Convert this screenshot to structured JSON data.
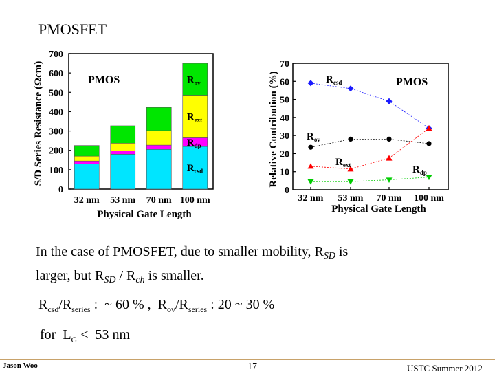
{
  "slide": {
    "title": "PMOSFET",
    "body_line1_pre": "In the case of PMOSFET, due to smaller mobility, R",
    "body_line1_sub": "SD",
    "body_line1_post": " is",
    "body_line2_pre": "larger, but R",
    "body_line2_sub1": "SD",
    "body_line2_mid": " / R",
    "body_line2_sub2": "ch",
    "body_line2_post": " is smaller.",
    "ratio": {
      "r1": "R",
      "r1_sub": "csd",
      "slash1": "/R",
      "series1_sub": "series",
      "v1": " :  ~ 60 % ,  ",
      "r2": "R",
      "r2_sub": "ov",
      "slash2": "/R",
      "series2_sub": "series",
      "v2": " : 20 ~ 30 %"
    },
    "range": {
      "pre": "for  L",
      "sub": "G",
      "post": " <  53 nm"
    },
    "footer": {
      "author": "Jason Woo",
      "page": "17",
      "venue": "USTC  Summer 2012"
    }
  },
  "chart_data": [
    {
      "type": "bar",
      "stacked": true,
      "annotation": "PMOS",
      "xlabel": "Physical Gate Length",
      "ylabel": "S/D Series Resistance (Ωcm)",
      "categories": [
        "32 nm",
        "53 nm",
        "70 nm",
        "100 nm"
      ],
      "ylim": [
        0,
        700
      ],
      "yticks": [
        0,
        100,
        200,
        300,
        400,
        500,
        600,
        700
      ],
      "series": [
        {
          "name": "Rcsd",
          "name_base": "R",
          "name_sub": "csd",
          "color": "#00e5ff",
          "values": [
            130,
            180,
            205,
            220
          ]
        },
        {
          "name": "Rdp",
          "name_base": "R",
          "name_sub": "dp",
          "color": "#ff00ff",
          "values": [
            15,
            17,
            22,
            45
          ]
        },
        {
          "name": "Rext",
          "name_base": "R",
          "name_sub": "ext",
          "color": "#ffff00",
          "values": [
            25,
            40,
            75,
            220
          ]
        },
        {
          "name": "Rov",
          "name_base": "R",
          "name_sub": "ov",
          "color": "#00e600",
          "values": [
            55,
            90,
            120,
            165
          ]
        }
      ]
    },
    {
      "type": "line",
      "annotation": "PMOS",
      "xlabel": "Physical Gate Length",
      "ylabel": "Relative Contribution (%)",
      "categories": [
        "32 nm",
        "53 nm",
        "70 nm",
        "100 nm"
      ],
      "ylim": [
        0,
        70
      ],
      "yticks": [
        0,
        10,
        20,
        30,
        40,
        50,
        60,
        70
      ],
      "series": [
        {
          "name": "Rcsd",
          "name_base": "R",
          "name_sub": "csd",
          "color": "#1a1aff",
          "marker": "diamond",
          "values": [
            59,
            56,
            49,
            34
          ]
        },
        {
          "name": "Rov",
          "name_base": "R",
          "name_sub": "ov",
          "color": "#000000",
          "marker": "circle",
          "values": [
            23.5,
            28,
            28,
            25.5
          ]
        },
        {
          "name": "Rext",
          "name_base": "R",
          "name_sub": "ext",
          "color": "#ff0000",
          "marker": "triangle",
          "values": [
            13,
            11.5,
            17.5,
            34
          ]
        },
        {
          "name": "Rdp",
          "name_base": "R",
          "name_sub": "dp",
          "color": "#00cc00",
          "marker": "tri-down",
          "values": [
            4.5,
            4.5,
            5.5,
            7
          ]
        }
      ]
    }
  ]
}
